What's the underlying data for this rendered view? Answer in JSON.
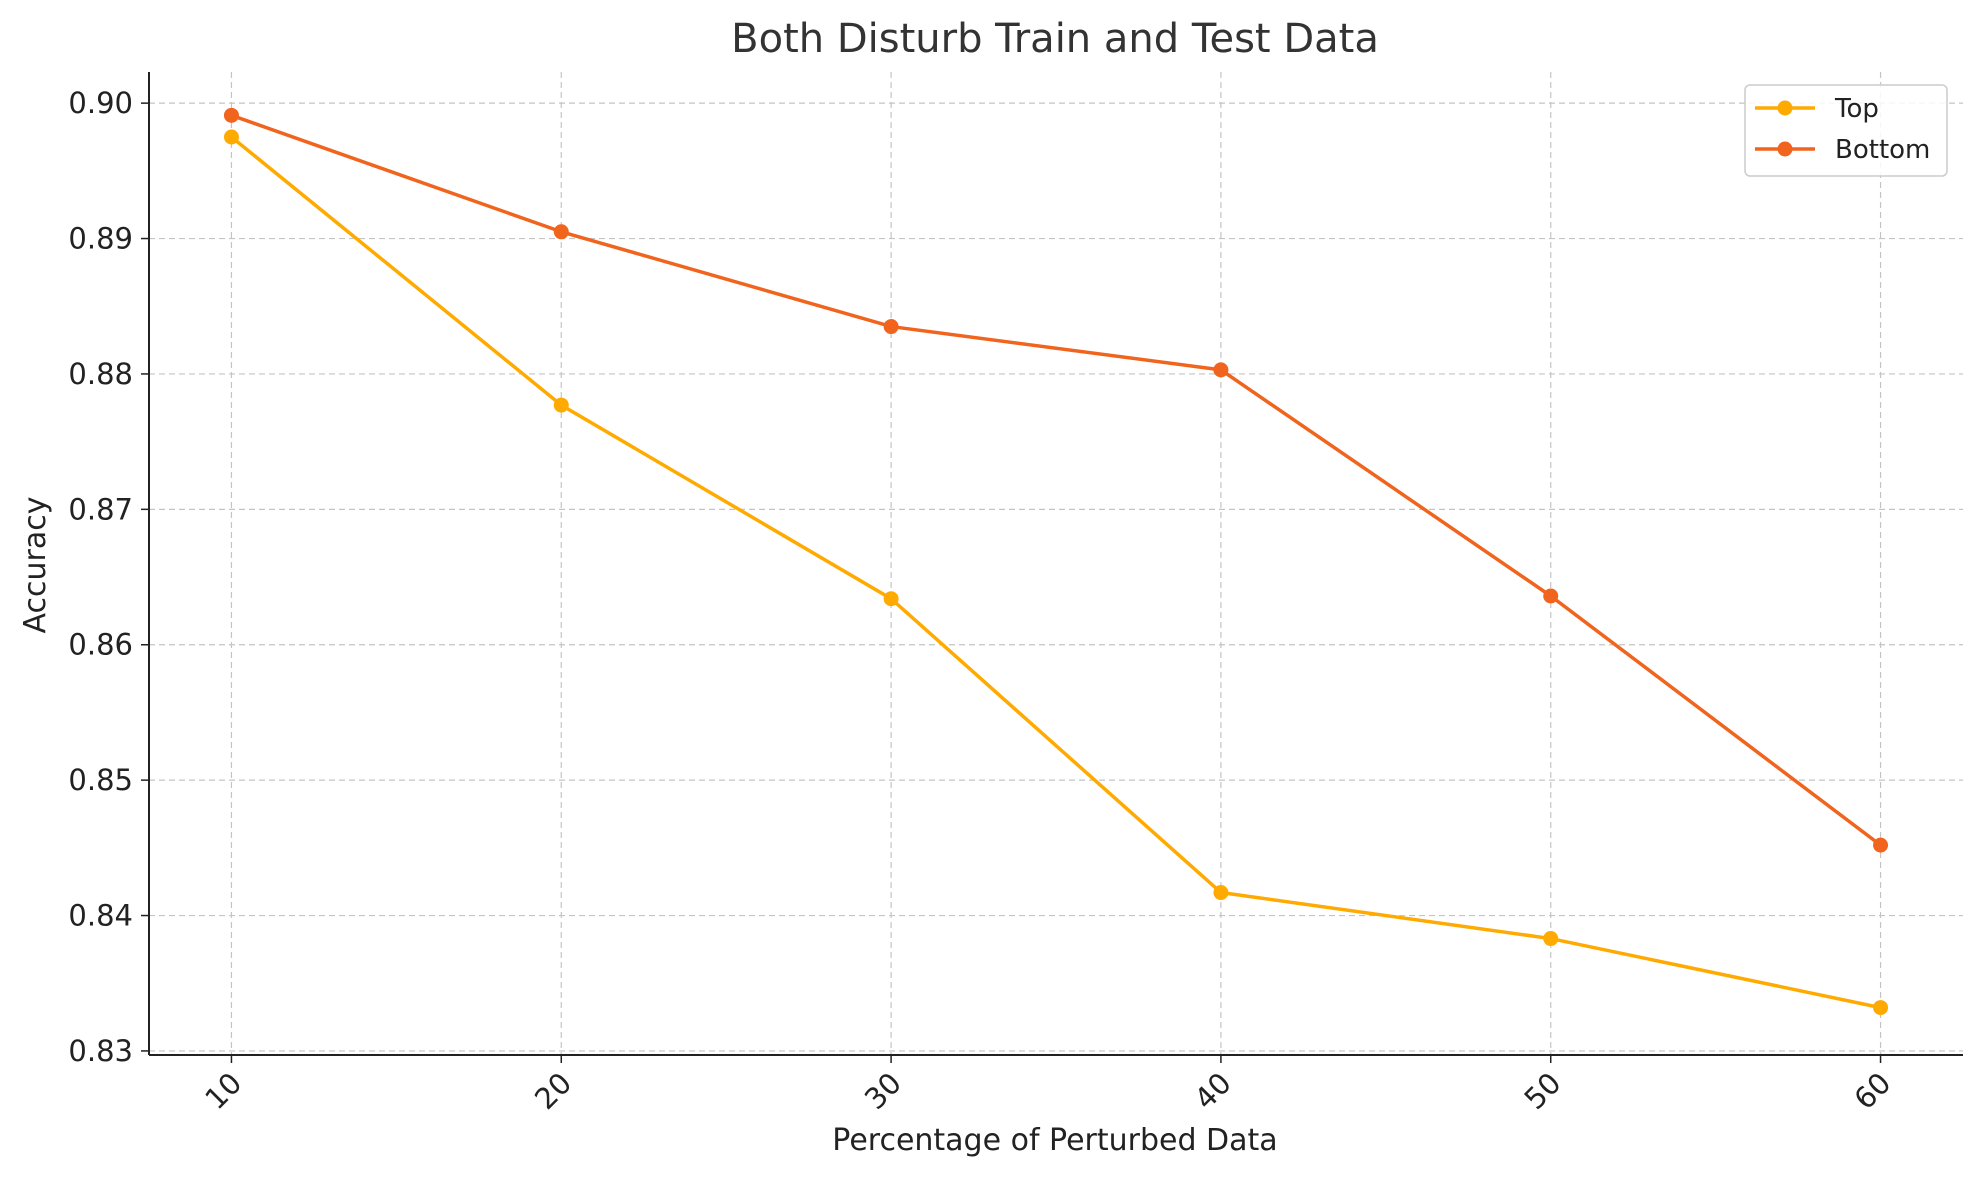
{
  "chart_data": {
    "type": "line",
    "title": "Both Disturb Train and Test Data",
    "xlabel": "Percentage of Perturbed Data",
    "ylabel": "Accuracy",
    "x": [
      10,
      20,
      30,
      40,
      50,
      60
    ],
    "x_tick_labels": [
      "10",
      "20",
      "30",
      "40",
      "50",
      "60"
    ],
    "y_tick_labels": [
      "0.83",
      "0.84",
      "0.85",
      "0.86",
      "0.87",
      "0.88",
      "0.89",
      "0.90"
    ],
    "y_ticks": [
      0.83,
      0.84,
      0.85,
      0.86,
      0.87,
      0.88,
      0.89,
      0.9
    ],
    "ylim": [
      0.8297,
      0.9023
    ],
    "xlim": [
      7.5,
      62.5
    ],
    "grid": true,
    "legend_position": "top-right",
    "series": [
      {
        "name": "Top",
        "color": "#FFAA00",
        "values": [
          0.8975,
          0.8777,
          0.8634,
          0.8417,
          0.8383,
          0.8332
        ]
      },
      {
        "name": "Bottom",
        "color": "#F0641E",
        "values": [
          0.8991,
          0.8905,
          0.8835,
          0.8803,
          0.8636,
          0.8452
        ]
      }
    ]
  }
}
